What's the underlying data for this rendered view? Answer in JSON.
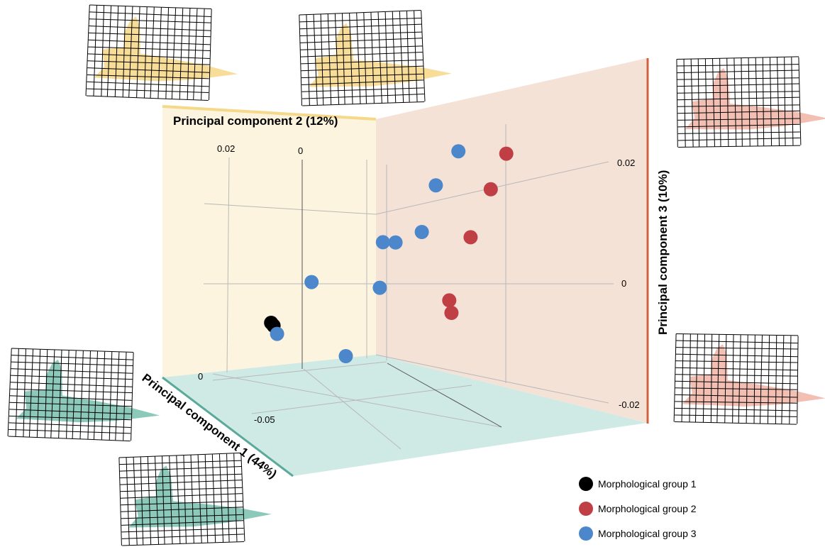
{
  "chart_data": {
    "type": "scatter",
    "projection": "3d",
    "axes": {
      "pc1": {
        "label": "Principal component 1 (44%)",
        "ticks": [
          "0",
          "-0.05"
        ],
        "color": "#5aa99a"
      },
      "pc2": {
        "label": "Principal component 2 (12%)",
        "ticks": [
          "0.02",
          "0"
        ],
        "color": "#f5d88a"
      },
      "pc3": {
        "label": "Principal component 3 (10%)",
        "ticks": [
          "0.02",
          "0",
          "-0.02"
        ],
        "color": "#d0613c"
      }
    },
    "series": [
      {
        "name": "Morphological group 1",
        "color": "#000000",
        "points": [
          {
            "x": -0.052,
            "y": -0.006,
            "z": -0.019
          },
          {
            "x": -0.056,
            "y": -0.004,
            "z": -0.021
          }
        ]
      },
      {
        "name": "Morphological group 2",
        "color": "#bf3f45",
        "points": [
          {
            "x": 0.013,
            "y": 0.021,
            "z": 0.022
          },
          {
            "x": 0.012,
            "y": 0.018,
            "z": 0.016
          },
          {
            "x": 0.011,
            "y": 0.014,
            "z": 0.008
          },
          {
            "x": 0.012,
            "y": 0.009,
            "z": -0.002
          },
          {
            "x": 0.016,
            "y": 0.008,
            "z": -0.003
          }
        ]
      },
      {
        "name": "Morphological group 3",
        "color": "#4c87cc",
        "points": [
          {
            "x": -0.007,
            "y": 0.018,
            "z": 0.018
          },
          {
            "x": -0.004,
            "y": 0.012,
            "z": 0.014
          },
          {
            "x": 0.004,
            "y": 0.006,
            "z": 0.009
          },
          {
            "x": -0.006,
            "y": 0.004,
            "z": 0.005
          },
          {
            "x": -0.008,
            "y": 0.002,
            "z": 0.005
          },
          {
            "x": 0.001,
            "y": -0.002,
            "z": 0.0
          },
          {
            "x": -0.012,
            "y": -0.012,
            "z": 0.0
          },
          {
            "x": -0.016,
            "y": -0.018,
            "z": -0.009
          },
          {
            "x": 0.0,
            "y": -0.009,
            "z": -0.011
          }
        ]
      }
    ],
    "legend_position": "bottom-right",
    "shape_thumbnails": [
      {
        "axis": "pc2",
        "color": "#f7d98e"
      },
      {
        "axis": "pc2",
        "color": "#f7d98e"
      },
      {
        "axis": "pc3",
        "color": "#f2b8ab"
      },
      {
        "axis": "pc3",
        "color": "#f2b8ab"
      },
      {
        "axis": "pc1",
        "color": "#7fc3b4"
      },
      {
        "axis": "pc1",
        "color": "#7fc3b4"
      }
    ],
    "panel_colors": {
      "pc2_wall": "#fdf4df",
      "pc3_wall": "#f5e2d7",
      "floor": "#cfeae5"
    }
  }
}
